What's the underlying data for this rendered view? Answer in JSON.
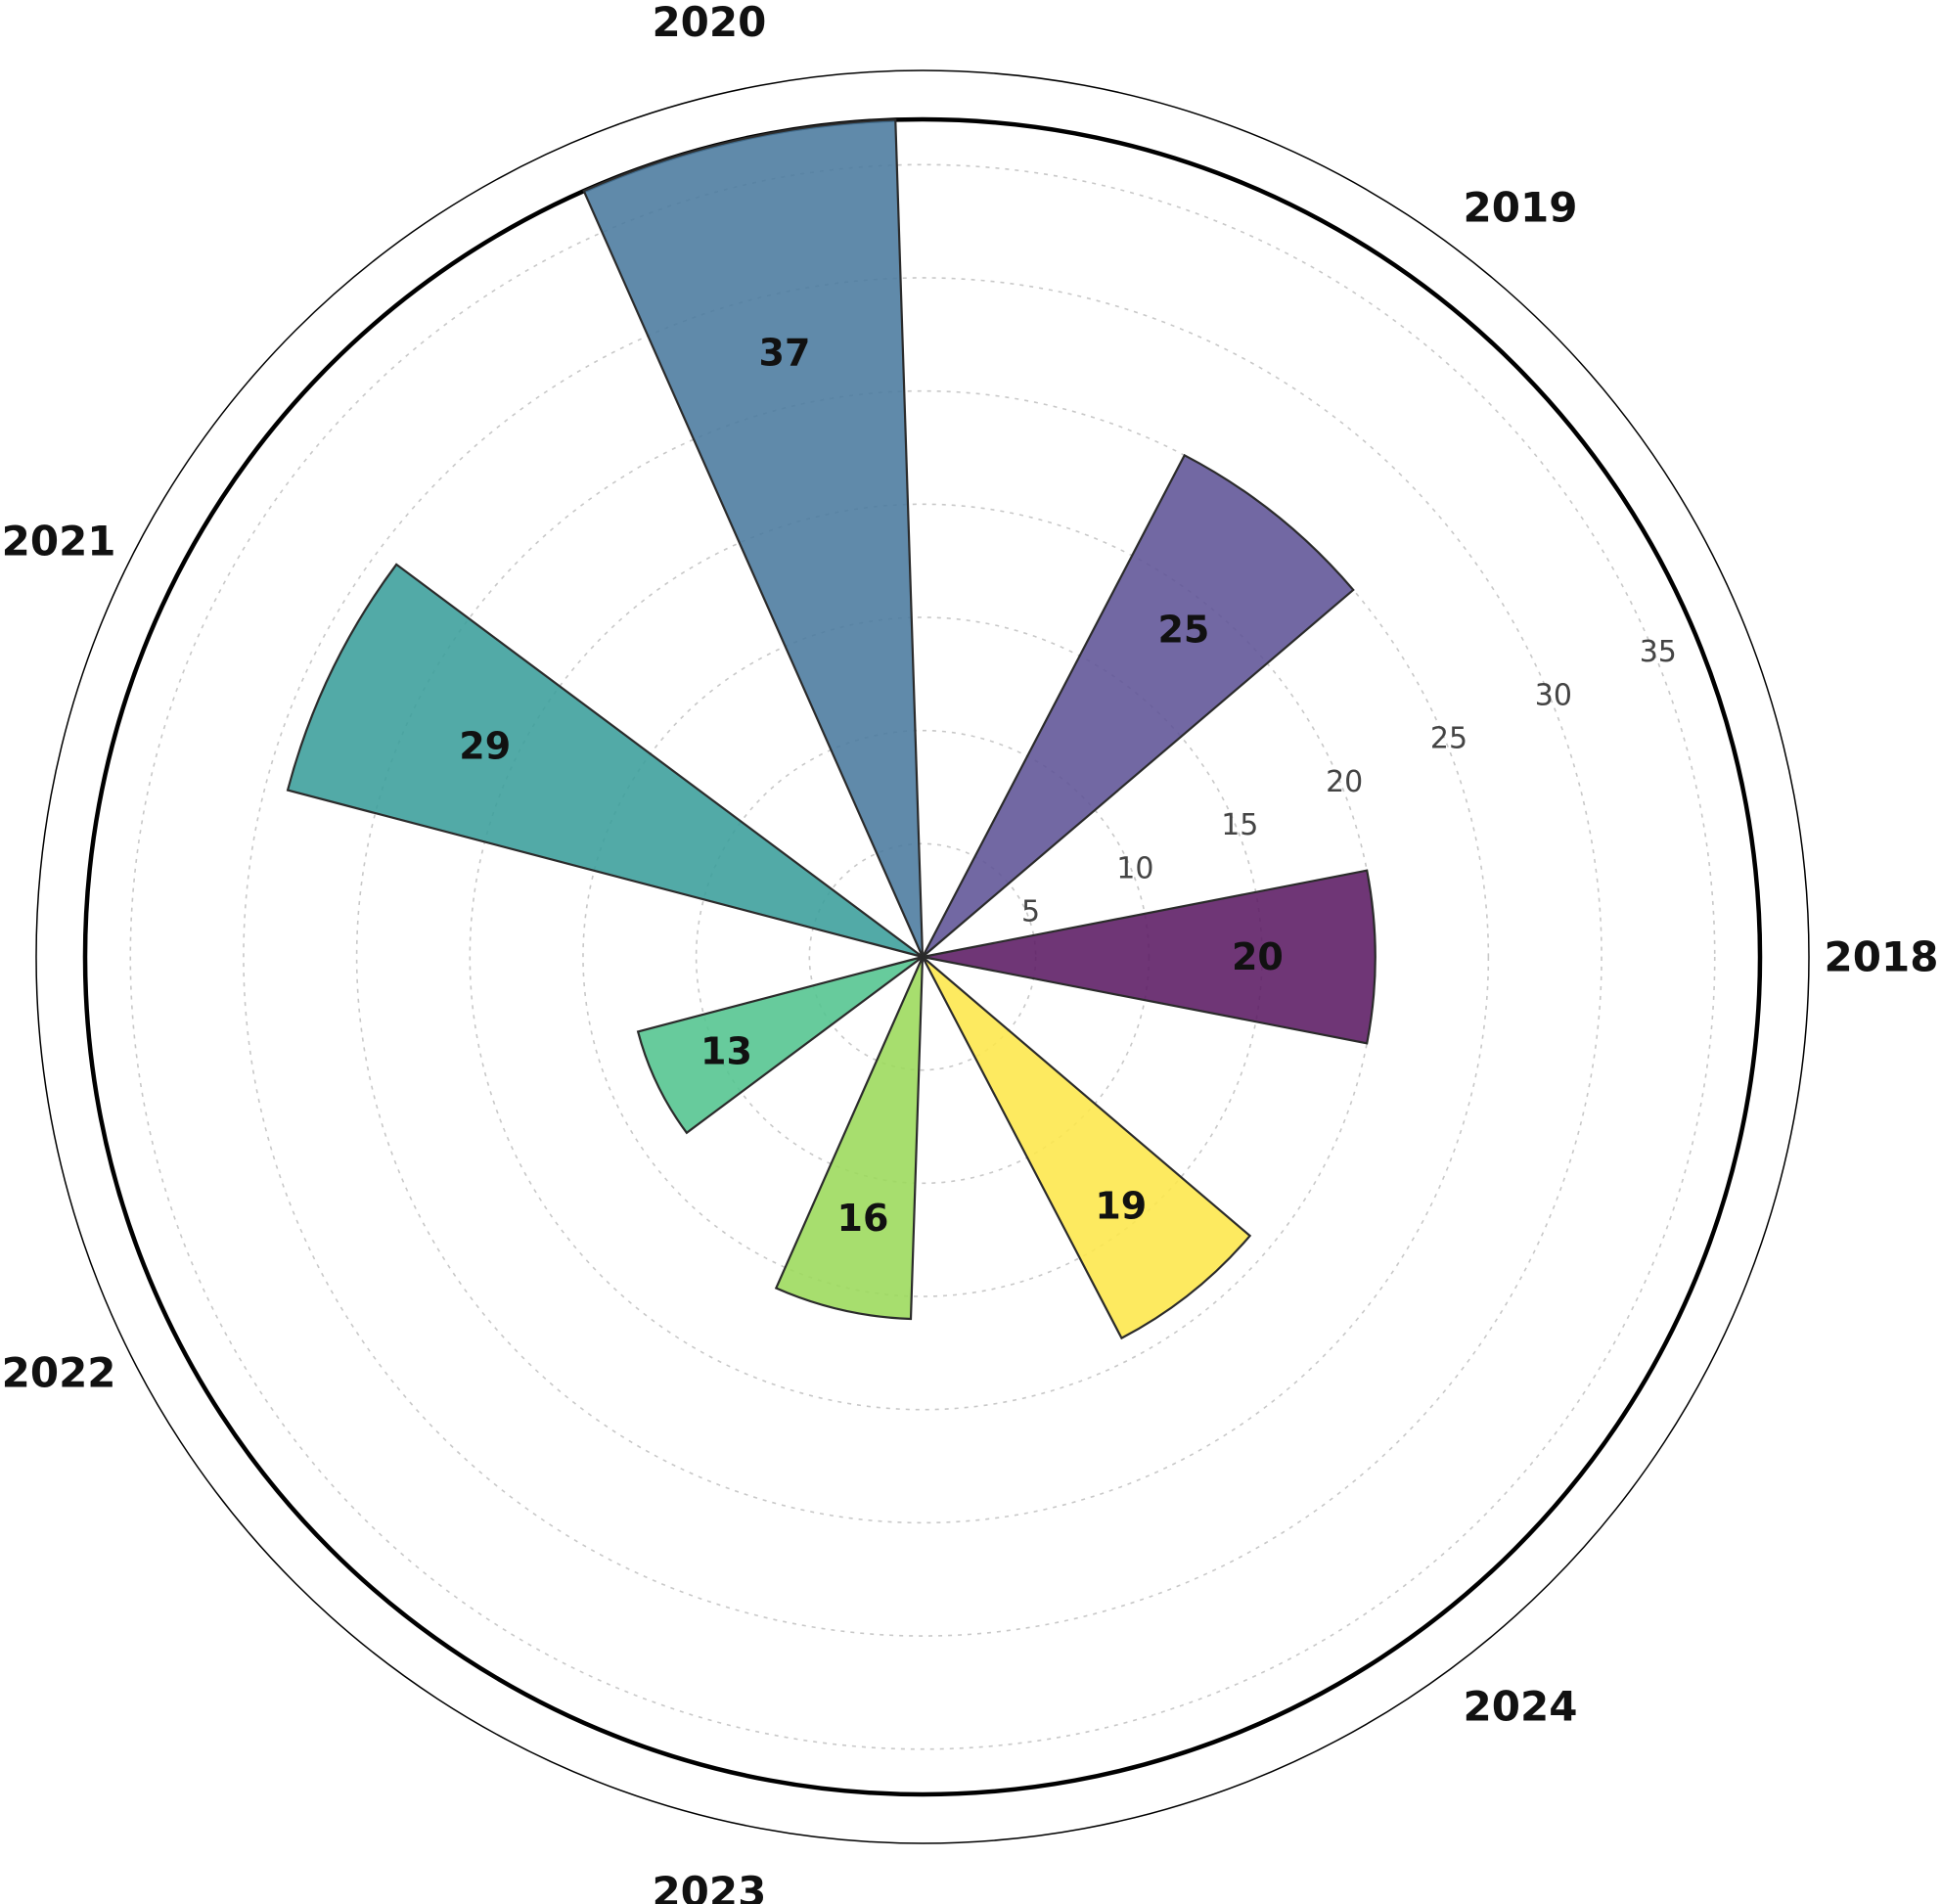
{
  "chart_data": {
    "type": "bar",
    "subtype": "polar",
    "title": "",
    "categories": [
      "2018",
      "2019",
      "2020",
      "2021",
      "2022",
      "2023",
      "2024"
    ],
    "values": [
      20,
      25,
      37,
      29,
      13,
      16,
      19
    ],
    "value_labels": [
      "20",
      "25",
      "37",
      "29",
      "13",
      "16",
      "19"
    ],
    "colors": [
      "#5b1a63",
      "#5f5396",
      "#4a7a9e",
      "#3a9e9b",
      "#52c48e",
      "#9bd95a",
      "#fde74a"
    ],
    "r_ticks": [
      5,
      10,
      15,
      20,
      25,
      30,
      35
    ],
    "r_tick_labels": [
      "5",
      "10",
      "15",
      "20",
      "25",
      "30",
      "35"
    ],
    "rlim": [
      0,
      37
    ],
    "grid": true,
    "legend": "none"
  }
}
